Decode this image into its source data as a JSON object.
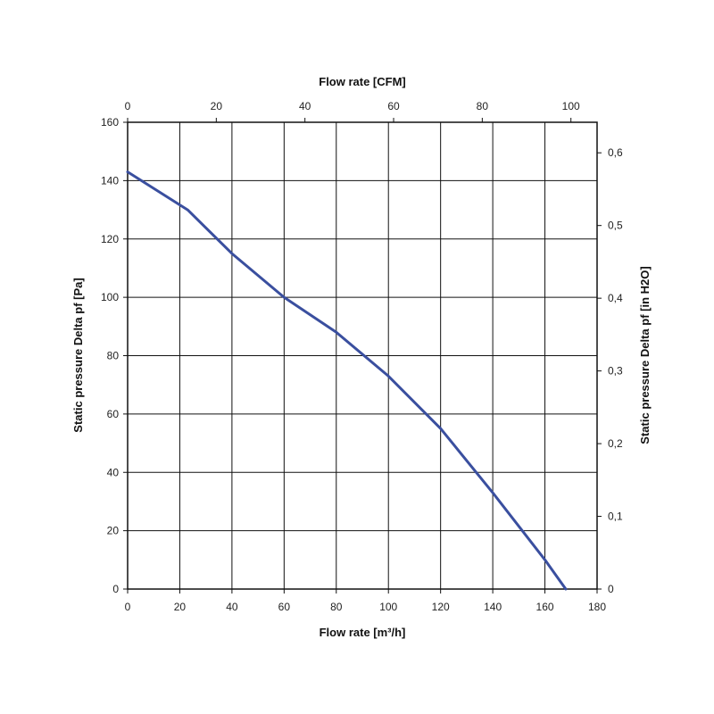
{
  "chart_data": {
    "type": "line",
    "xlabel_bottom": "Flow rate [m³/h]",
    "xlabel_top": "Flow rate [CFM]",
    "ylabel_left": "Static pressure Delta pf [Pa]",
    "ylabel_right": "Static pressure Delta pf [in H2O]",
    "x_bottom_range": [
      0,
      180
    ],
    "x_bottom_ticks": [
      0,
      20,
      40,
      60,
      80,
      100,
      120,
      140,
      160,
      180
    ],
    "x_top_range": [
      0,
      105.9
    ],
    "x_top_ticks": [
      0,
      20,
      40,
      60,
      80,
      100
    ],
    "y_left_range": [
      0,
      160
    ],
    "y_left_ticks": [
      0,
      20,
      40,
      60,
      80,
      100,
      120,
      140,
      160
    ],
    "y_right_range": [
      0,
      0.642
    ],
    "y_right_ticks": [
      {
        "value": 0,
        "label": "0"
      },
      {
        "value": 0.1,
        "label": "0,1"
      },
      {
        "value": 0.2,
        "label": "0,2"
      },
      {
        "value": 0.3,
        "label": "0,3"
      },
      {
        "value": 0.4,
        "label": "0,4"
      },
      {
        "value": 0.5,
        "label": "0,5"
      },
      {
        "value": 0.6,
        "label": "0,6"
      }
    ],
    "grid": true,
    "series": [
      {
        "color": "#3a4f9f",
        "x": [
          0,
          23,
          40,
          60,
          80,
          100,
          120,
          140,
          160,
          168
        ],
        "y": [
          143,
          130,
          115,
          100,
          88,
          73,
          55,
          33,
          10,
          0
        ]
      }
    ]
  }
}
